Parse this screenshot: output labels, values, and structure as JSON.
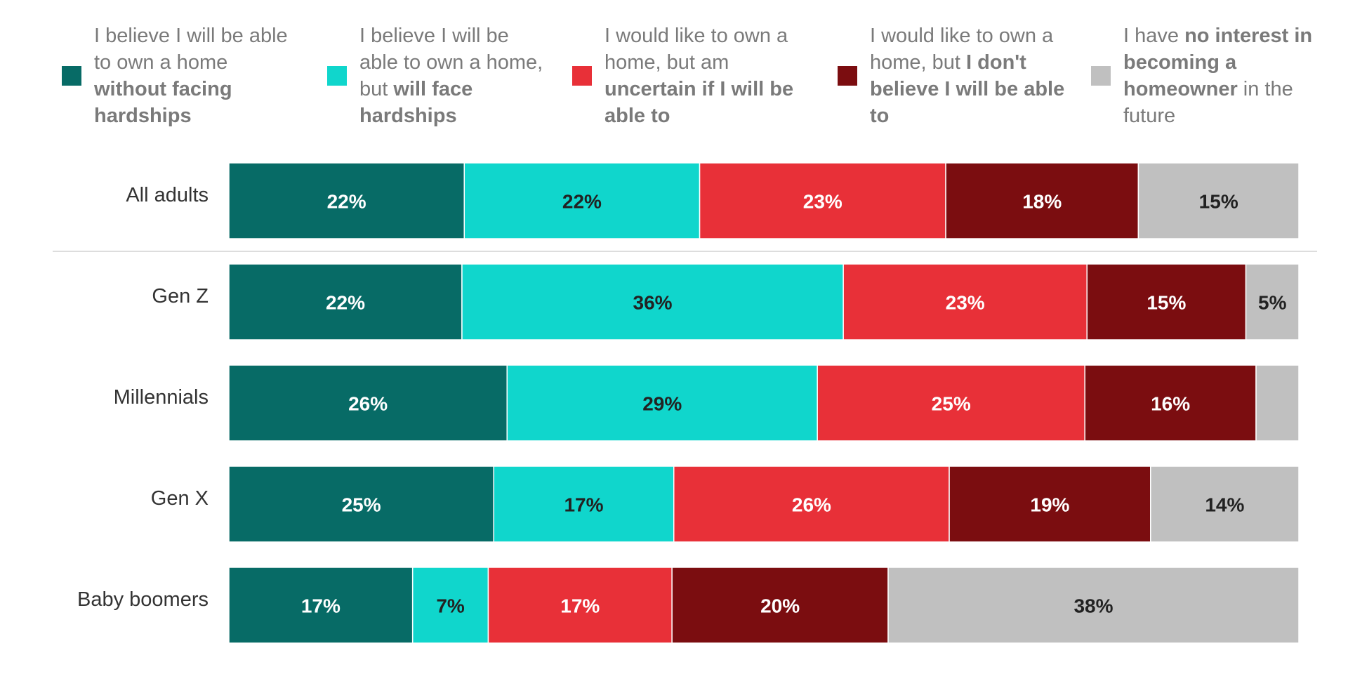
{
  "chart_data": {
    "type": "bar",
    "orientation": "horizontal",
    "stacked": true,
    "normalized": true,
    "categories": [
      "All adults",
      "Gen Z",
      "Millennials",
      "Gen X",
      "Baby boomers"
    ],
    "series": [
      {
        "key": "own-without-hardship",
        "color": "#076b66",
        "label_color": "#ffffff",
        "legend_parts": [
          {
            "text": "I believe I will be able to own a home ",
            "bold": false
          },
          {
            "text": "without facing hardships",
            "bold": true
          }
        ],
        "values": [
          22,
          22,
          26,
          25,
          17
        ]
      },
      {
        "key": "own-with-hardship",
        "color": "#10d6cc",
        "label_color": "#222222",
        "legend_parts": [
          {
            "text": "I believe I will be able to own a home, but ",
            "bold": false
          },
          {
            "text": "will face hardships",
            "bold": true
          }
        ],
        "values": [
          22,
          36,
          29,
          17,
          7
        ]
      },
      {
        "key": "uncertain",
        "color": "#e83038",
        "label_color": "#ffffff",
        "legend_parts": [
          {
            "text": "I would like to own a home, but am ",
            "bold": false
          },
          {
            "text": "uncertain if I will be able to",
            "bold": true
          }
        ],
        "values": [
          23,
          23,
          25,
          26,
          17
        ]
      },
      {
        "key": "dont-believe",
        "color": "#7b0d10",
        "label_color": "#ffffff",
        "legend_parts": [
          {
            "text": "I would like to own a home, but ",
            "bold": false
          },
          {
            "text": "I don't believe I will be able to",
            "bold": true
          }
        ],
        "values": [
          18,
          15,
          16,
          19,
          20
        ]
      },
      {
        "key": "no-interest",
        "color": "#c0c0c0",
        "label_color": "#222222",
        "legend_parts": [
          {
            "text": "I have ",
            "bold": false
          },
          {
            "text": "no interest in becoming a homeowner",
            "bold": true
          },
          {
            "text": " in the future",
            "bold": false
          }
        ],
        "values": [
          15,
          5,
          4,
          14,
          38
        ]
      }
    ],
    "data_labels": [
      [
        "22%",
        "22%",
        "23%",
        "18%",
        "15%"
      ],
      [
        "22%",
        "36%",
        "23%",
        "15%",
        "5%"
      ],
      [
        "26%",
        "29%",
        "25%",
        "16%",
        ""
      ],
      [
        "25%",
        "17%",
        "26%",
        "19%",
        "14%"
      ],
      [
        "17%",
        "7%",
        "17%",
        "20%",
        "38%"
      ]
    ],
    "separator_after_category": "All adults",
    "legend_position": "top",
    "grid": false,
    "title": "",
    "xlabel": "",
    "ylabel": ""
  }
}
